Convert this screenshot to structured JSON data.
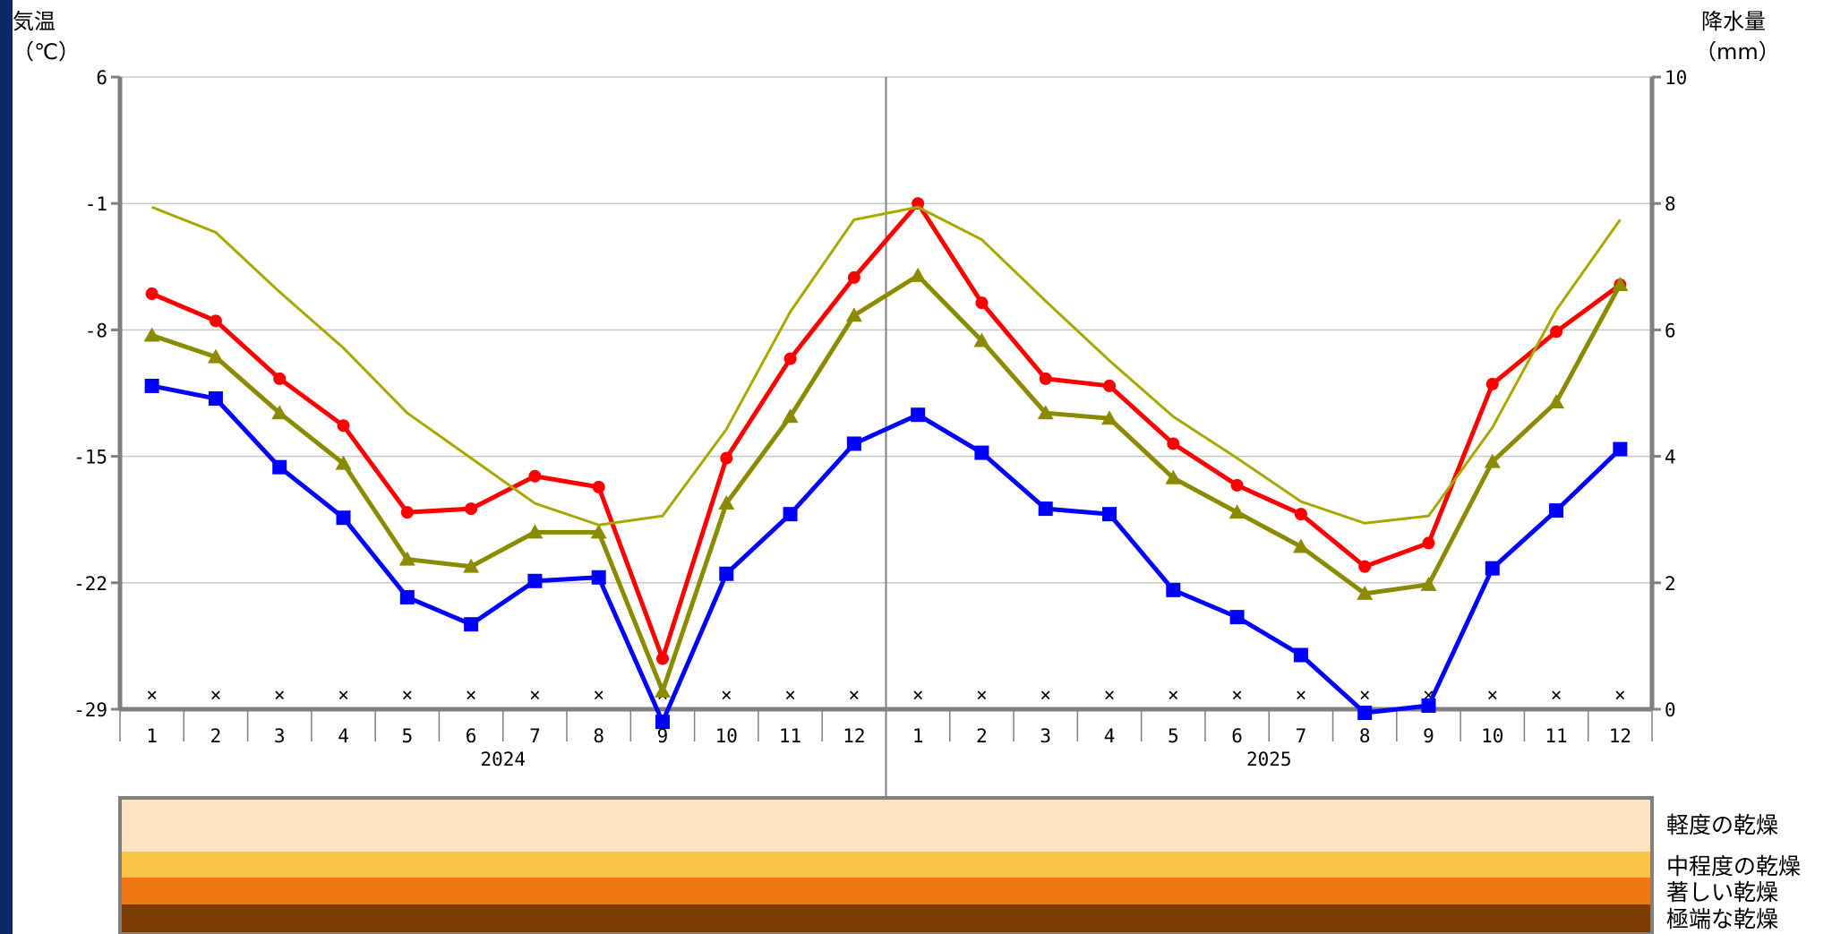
{
  "chart_data": {
    "type": "line",
    "left_axis": {
      "title_line1": "気温",
      "title_line2": "（℃）",
      "ylim": [
        -29,
        6
      ],
      "ticks": [
        6,
        -1,
        -8,
        -15,
        -22,
        -29
      ]
    },
    "right_axis": {
      "title_line1": "降水量",
      "title_line2": "（mm）",
      "ylim": [
        0,
        10
      ],
      "ticks": [
        10,
        8,
        6,
        4,
        2,
        0
      ]
    },
    "categories": [
      "1",
      "2",
      "3",
      "4",
      "5",
      "6",
      "7",
      "8",
      "9",
      "10",
      "11",
      "12",
      "1",
      "2",
      "3",
      "4",
      "5",
      "6",
      "7",
      "8",
      "9",
      "10",
      "11",
      "12"
    ],
    "years": [
      "2024",
      "2025"
    ],
    "grid": true,
    "series": [
      {
        "color": "#ff0000",
        "marker": "circle",
        "axis": "left",
        "values": [
          -6.0,
          -7.5,
          -10.7,
          -13.3,
          -18.1,
          -17.9,
          -16.1,
          -16.7,
          -26.2,
          -15.1,
          -9.6,
          -5.1,
          -1.0,
          -6.5,
          -10.7,
          -11.1,
          -14.3,
          -16.6,
          -18.2,
          -21.1,
          -19.8,
          -11.0,
          -8.1,
          -5.5
        ]
      },
      {
        "color": "#0000ff",
        "marker": "square",
        "axis": "left",
        "values": [
          -11.1,
          -11.8,
          -15.6,
          -18.4,
          -22.8,
          -24.3,
          -21.9,
          -21.7,
          -29.7,
          -21.5,
          -18.2,
          -14.3,
          -12.7,
          -14.8,
          -17.9,
          -18.2,
          -22.4,
          -23.9,
          -26.0,
          -29.2,
          -28.8,
          -21.2,
          -18.0,
          -14.6
        ]
      },
      {
        "color": "#8b8b00",
        "marker": "triangle",
        "axis": "left",
        "values": [
          -8.3,
          -9.5,
          -12.6,
          -15.4,
          -20.7,
          -21.1,
          -19.2,
          -19.2,
          -28.0,
          -17.6,
          -12.8,
          -7.2,
          -5.0,
          -8.6,
          -12.6,
          -12.9,
          -16.2,
          -18.1,
          -20.0,
          -22.6,
          -22.1,
          -15.3,
          -12.0,
          -5.5
        ]
      },
      {
        "color": "#a8a800",
        "marker": "none",
        "axis": "left",
        "values": [
          -1.2,
          -2.6,
          -5.9,
          -9.0,
          -12.6,
          -15.1,
          -17.6,
          -18.8,
          -18.3,
          -13.5,
          -7.0,
          -1.9,
          -1.2,
          -3.0,
          -6.4,
          -9.7,
          -12.8,
          -15.1,
          -17.5,
          -18.7,
          -18.3,
          -13.4,
          -6.9,
          -1.9
        ]
      }
    ],
    "precipitation": {
      "axis": "right",
      "marker": "x",
      "values": [
        0.2,
        0.2,
        0.2,
        0.2,
        0.2,
        0.2,
        0.2,
        0.2,
        0.2,
        0.2,
        0.2,
        0.2,
        0.2,
        0.2,
        0.2,
        0.2,
        0.2,
        0.2,
        0.2,
        0.2,
        0.2,
        0.2,
        0.2,
        0.2
      ]
    },
    "drought_bands": [
      {
        "label": "軽度の乾燥",
        "color": "#fde3bf"
      },
      {
        "label": "中程度の乾燥",
        "color": "#fbc447"
      },
      {
        "label": "著しい乾燥",
        "color": "#f07814"
      },
      {
        "label": "極端な乾燥",
        "color": "#7b3c00"
      }
    ]
  }
}
